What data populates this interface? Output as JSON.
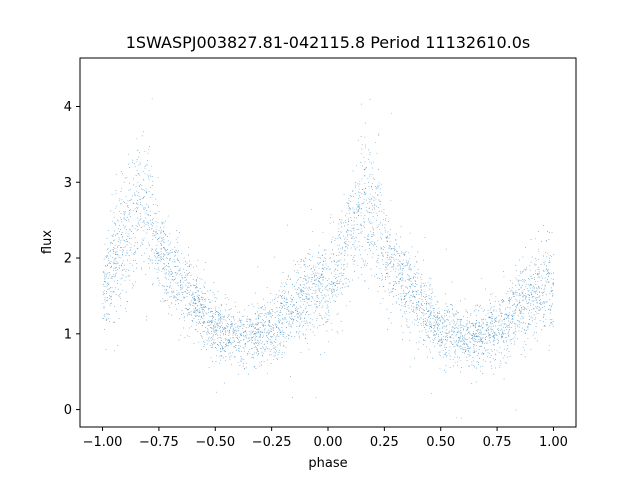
{
  "chart_data": {
    "type": "scatter",
    "title": "1SWASPJ003827.81-042115.8 Period 11132610.0s",
    "xlabel": "phase",
    "ylabel": "flux",
    "xlim": [
      -1.1,
      1.1
    ],
    "ylim": [
      -0.23,
      4.64
    ],
    "x_ticks": [
      -1.0,
      -0.75,
      -0.5,
      -0.25,
      0.0,
      0.25,
      0.5,
      0.75,
      1.0
    ],
    "x_tick_labels": [
      "−1.00",
      "−0.75",
      "−0.50",
      "−0.25",
      "0.00",
      "0.25",
      "0.50",
      "0.75",
      "1.00"
    ],
    "y_ticks": [
      0,
      1,
      2,
      3,
      4
    ],
    "y_tick_labels": [
      "0",
      "1",
      "2",
      "3",
      "4"
    ],
    "grid": false,
    "legend": "none",
    "marker_color": "#1f77b4",
    "phase_range": [
      -1.0,
      1.0
    ],
    "profile": {
      "phase": [
        0.0,
        0.05,
        0.1,
        0.15,
        0.2,
        0.25,
        0.3,
        0.35,
        0.4,
        0.45,
        0.5,
        0.55,
        0.6,
        0.65,
        0.7,
        0.75,
        0.8,
        0.85,
        0.9,
        0.95,
        1.0
      ],
      "flux": [
        1.6,
        1.95,
        2.3,
        2.65,
        2.6,
        2.1,
        1.85,
        1.65,
        1.45,
        1.25,
        1.05,
        1.0,
        0.95,
        0.95,
        0.98,
        1.05,
        1.2,
        1.35,
        1.5,
        1.6,
        1.6
      ],
      "scatter": [
        0.35,
        0.35,
        0.4,
        0.45,
        0.4,
        0.3,
        0.28,
        0.26,
        0.25,
        0.22,
        0.22,
        0.2,
        0.2,
        0.2,
        0.2,
        0.22,
        0.25,
        0.25,
        0.3,
        0.3,
        0.35
      ]
    },
    "point_count": 22000
  }
}
